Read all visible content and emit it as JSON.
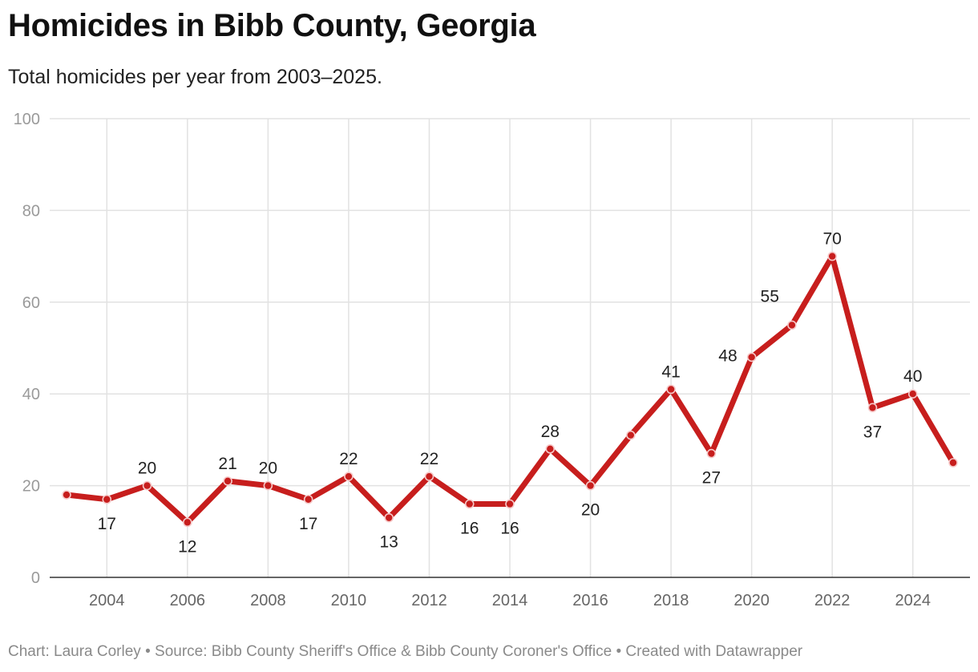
{
  "header": {
    "title": "Homicides in Bibb County, Georgia",
    "subtitle": "Total homicides per year from 2003–2025."
  },
  "footer": {
    "credit": "Chart: Laura Corley",
    "separator": "•",
    "source": "Source: Bibb County Sheriff's Office & Bibb County Coroner's Office",
    "tool": "Created with Datawrapper"
  },
  "chart_data": {
    "type": "line",
    "title": "Homicides in Bibb County, Georgia",
    "subtitle": "Total homicides per year from 2003–2025.",
    "xlabel": "",
    "ylabel": "",
    "xlim": [
      2003,
      2025
    ],
    "ylim": [
      0,
      100
    ],
    "y_ticks": [
      0,
      20,
      40,
      60,
      80,
      100
    ],
    "x_ticks": [
      2004,
      2006,
      2008,
      2010,
      2012,
      2014,
      2016,
      2018,
      2020,
      2022,
      2024
    ],
    "grid": true,
    "line_color": "#c71e1d",
    "series": [
      {
        "name": "Homicides",
        "x": [
          2003,
          2004,
          2005,
          2006,
          2007,
          2008,
          2009,
          2010,
          2011,
          2012,
          2013,
          2014,
          2015,
          2016,
          2017,
          2018,
          2019,
          2020,
          2021,
          2022,
          2023,
          2024,
          2025
        ],
        "values": [
          18,
          17,
          20,
          12,
          21,
          20,
          17,
          22,
          13,
          22,
          16,
          16,
          28,
          20,
          31,
          41,
          27,
          48,
          55,
          70,
          37,
          40,
          25
        ]
      }
    ],
    "data_labels": [
      {
        "year": 2004,
        "text": "17",
        "position": "below"
      },
      {
        "year": 2005,
        "text": "20",
        "position": "above"
      },
      {
        "year": 2006,
        "text": "12",
        "position": "below"
      },
      {
        "year": 2007,
        "text": "21",
        "position": "above"
      },
      {
        "year": 2008,
        "text": "20",
        "position": "above"
      },
      {
        "year": 2009,
        "text": "17",
        "position": "below"
      },
      {
        "year": 2010,
        "text": "22",
        "position": "above"
      },
      {
        "year": 2011,
        "text": "13",
        "position": "below"
      },
      {
        "year": 2012,
        "text": "22",
        "position": "above"
      },
      {
        "year": 2013,
        "text": "16",
        "position": "below"
      },
      {
        "year": 2014,
        "text": "16",
        "position": "below"
      },
      {
        "year": 2015,
        "text": "28",
        "position": "above"
      },
      {
        "year": 2016,
        "text": "20",
        "position": "below"
      },
      {
        "year": 2018,
        "text": "41",
        "position": "above"
      },
      {
        "year": 2019,
        "text": "27",
        "position": "below"
      },
      {
        "year": 2020,
        "text": "48",
        "position": "left"
      },
      {
        "year": 2021,
        "text": "55",
        "position": "upper-left"
      },
      {
        "year": 2022,
        "text": "70",
        "position": "above"
      },
      {
        "year": 2023,
        "text": "37",
        "position": "below"
      },
      {
        "year": 2024,
        "text": "40",
        "position": "above"
      }
    ]
  }
}
